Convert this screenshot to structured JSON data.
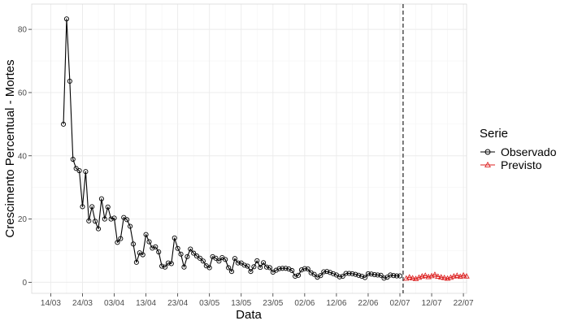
{
  "chart_data": {
    "type": "line",
    "xlabel": "Data",
    "ylabel": "Crescimento Percentual - Mortes",
    "ylim": [
      -3.5,
      88
    ],
    "xlim_dates": [
      "2020-03-08",
      "2020-07-23"
    ],
    "x_ticks": [
      {
        "date": "2020-03-14",
        "label": "14/03"
      },
      {
        "date": "2020-03-24",
        "label": "24/03"
      },
      {
        "date": "2020-04-03",
        "label": "03/04"
      },
      {
        "date": "2020-04-13",
        "label": "13/04"
      },
      {
        "date": "2020-04-23",
        "label": "23/04"
      },
      {
        "date": "2020-05-03",
        "label": "03/05"
      },
      {
        "date": "2020-05-13",
        "label": "13/05"
      },
      {
        "date": "2020-05-23",
        "label": "23/05"
      },
      {
        "date": "2020-06-02",
        "label": "02/06"
      },
      {
        "date": "2020-06-12",
        "label": "12/06"
      },
      {
        "date": "2020-06-22",
        "label": "22/06"
      },
      {
        "date": "2020-07-02",
        "label": "02/07"
      },
      {
        "date": "2020-07-12",
        "label": "12/07"
      },
      {
        "date": "2020-07-22",
        "label": "22/07"
      }
    ],
    "y_ticks": [
      0,
      20,
      40,
      60,
      80
    ],
    "grid": true,
    "vline_date": "2020-07-03",
    "legend": {
      "title": "Serie",
      "position": "right"
    },
    "series": [
      {
        "name": "Observado",
        "color": "#000000",
        "marker": "circle",
        "start_date": "2020-03-18",
        "values": [
          50,
          83.3,
          63.6,
          38.9,
          36,
          35.3,
          23.9,
          35,
          19.4,
          23.9,
          19.3,
          16.9,
          26.4,
          20,
          23.8,
          20,
          20.3,
          12.6,
          13.8,
          20.5,
          19.8,
          17.7,
          12.1,
          6.3,
          9.3,
          8.7,
          15.1,
          12.8,
          10.8,
          11.2,
          9.6,
          5.1,
          4.8,
          6.1,
          5.9,
          14,
          10.7,
          8.9,
          4.8,
          8.1,
          10.5,
          9.2,
          8.3,
          7.6,
          6.7,
          5.2,
          4.6,
          8.1,
          7.6,
          6.7,
          7.8,
          7.2,
          4.6,
          3.4,
          7.5,
          6.1,
          6.1,
          5.4,
          5.1,
          3.4,
          4.9,
          6.8,
          4.7,
          6.2,
          4.8,
          4.6,
          3.2,
          3.8,
          4.3,
          4.4,
          4.4,
          4.2,
          3.7,
          1.9,
          2.2,
          3.9,
          4.3,
          4.2,
          3,
          2.5,
          1.6,
          2.1,
          3.3,
          3.4,
          3.1,
          2.7,
          2.3,
          1.7,
          1.9,
          2.8,
          2.8,
          2.7,
          2.5,
          2.2,
          1.9,
          1.5,
          2.7,
          2.6,
          2.4,
          2.3,
          2.2,
          1.3,
          1.6,
          2.3,
          2.1,
          2,
          2
        ]
      },
      {
        "name": "Previsto",
        "color": "#dd2222",
        "marker": "triangle",
        "start_date": "2020-07-04",
        "values": [
          1.2,
          1.6,
          1.3,
          1.1,
          1.5,
          1.9,
          2.1,
          1.7,
          2.0,
          2.4,
          1.8,
          1.6,
          1.4,
          1.2,
          1.5,
          1.9,
          2.1,
          1.8,
          2.2,
          1.9
        ]
      }
    ]
  }
}
